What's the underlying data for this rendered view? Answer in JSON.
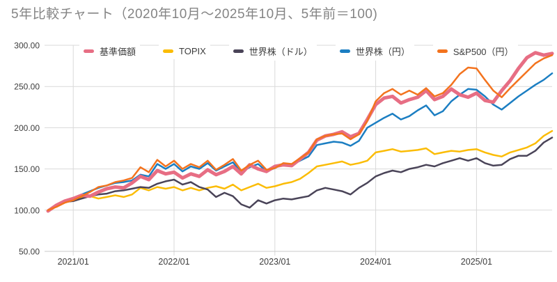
{
  "chart_data": {
    "type": "line",
    "title": "5年比較チャート（2020年10月〜2025年10月、5年前＝100)",
    "ylim": [
      50,
      300
    ],
    "grid": true,
    "legend_position": "top",
    "y_ticks": [
      {
        "value": 300,
        "label": "300.00"
      },
      {
        "value": 250,
        "label": "250.00"
      },
      {
        "value": 200,
        "label": "200.00"
      },
      {
        "value": 150,
        "label": "150.00"
      },
      {
        "value": 100,
        "label": "100.00"
      },
      {
        "value": 50,
        "label": "50.00"
      }
    ],
    "x_range": {
      "start": "2020/10",
      "end": "2025/10",
      "months": 61
    },
    "x_ticks": [
      {
        "month_index": 3,
        "label": "2021/01"
      },
      {
        "month_index": 15,
        "label": "2022/01"
      },
      {
        "month_index": 27,
        "label": "2023/01"
      },
      {
        "month_index": 39,
        "label": "2024/01"
      },
      {
        "month_index": 51,
        "label": "2025/01"
      }
    ],
    "series": [
      {
        "id": "fund-nav",
        "name": "基準価額",
        "color": "#e76e84",
        "line_width": 5,
        "values": [
          99,
          106,
          111,
          114,
          118,
          117,
          122,
          126,
          128,
          127,
          133,
          141,
          137,
          148,
          144,
          146,
          139,
          144,
          141,
          149,
          143,
          147,
          153,
          144,
          155,
          150,
          147,
          153,
          155,
          154,
          162,
          170,
          185,
          190,
          192,
          195,
          189,
          193,
          210,
          228,
          236,
          238,
          230,
          234,
          237,
          245,
          234,
          238,
          247,
          240,
          237,
          242,
          233,
          231,
          245,
          257,
          272,
          285,
          291,
          288,
          290
        ]
      },
      {
        "id": "topix",
        "name": "TOPIX",
        "color": "#fbbc05",
        "line_width": 2.5,
        "values": [
          100,
          105,
          109,
          112,
          116,
          117,
          114,
          116,
          118,
          116,
          119,
          127,
          124,
          128,
          126,
          128,
          124,
          127,
          124,
          127,
          129,
          126,
          131,
          124,
          128,
          132,
          127,
          129,
          132,
          134,
          138,
          145,
          153,
          155,
          157,
          159,
          155,
          157,
          160,
          170,
          172,
          174,
          171,
          172,
          173,
          175,
          168,
          170,
          172,
          171,
          173,
          174,
          170,
          167,
          165,
          170,
          173,
          176,
          181,
          190,
          196
        ]
      },
      {
        "id": "world-stocks-usd",
        "name": "世界株（ドル）",
        "color": "#4a4458",
        "line_width": 2.5,
        "values": [
          100,
          106,
          110,
          111,
          114,
          117,
          119,
          120,
          123,
          124,
          126,
          128,
          127,
          132,
          135,
          137,
          131,
          134,
          128,
          125,
          116,
          121,
          117,
          107,
          103,
          112,
          108,
          112,
          114,
          113,
          115,
          117,
          124,
          127,
          125,
          123,
          119,
          127,
          133,
          141,
          145,
          148,
          146,
          150,
          152,
          155,
          153,
          157,
          160,
          163,
          160,
          163,
          157,
          154,
          155,
          162,
          166,
          166,
          172,
          182,
          188
        ]
      },
      {
        "id": "world-stocks-jpy",
        "name": "世界株（円）",
        "color": "#1b7ec2",
        "line_width": 2.5,
        "values": [
          100,
          106,
          110,
          113,
          119,
          123,
          127,
          130,
          133,
          134,
          136,
          143,
          141,
          156,
          150,
          156,
          147,
          153,
          150,
          157,
          148,
          153,
          158,
          146,
          152,
          156,
          147,
          151,
          156,
          155,
          160,
          165,
          179,
          181,
          183,
          182,
          178,
          184,
          200,
          206,
          212,
          217,
          210,
          214,
          221,
          227,
          215,
          220,
          232,
          240,
          247,
          246,
          238,
          228,
          222,
          230,
          238,
          245,
          252,
          258,
          266
        ]
      },
      {
        "id": "sp500-jpy",
        "name": "S&P500（円）",
        "color": "#f3731e",
        "line_width": 2.5,
        "values": [
          100,
          104,
          109,
          112,
          117,
          122,
          128,
          130,
          134,
          136,
          139,
          152,
          146,
          161,
          153,
          160,
          150,
          156,
          152,
          160,
          149,
          155,
          162,
          148,
          155,
          160,
          149,
          151,
          157,
          156,
          163,
          170,
          186,
          190,
          192,
          193,
          186,
          192,
          208,
          232,
          242,
          247,
          240,
          245,
          240,
          248,
          238,
          242,
          252,
          265,
          273,
          272,
          258,
          245,
          237,
          248,
          258,
          268,
          278,
          284,
          288
        ]
      }
    ],
    "colors": {
      "gridline": "#d9d9d9",
      "axis_line": "#c9c9c9",
      "tick_label": "#3c3c3c",
      "title": "#848484"
    }
  }
}
